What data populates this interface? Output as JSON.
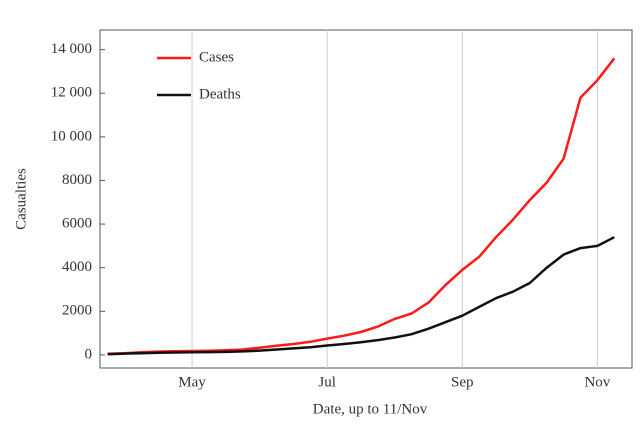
{
  "chart_data": {
    "type": "line",
    "x_label": "Date, up to 11/Nov",
    "y_label": "Casualties",
    "categories": [
      null,
      null,
      null,
      null,
      null,
      "May",
      null,
      null,
      null,
      null,
      null,
      null,
      null,
      "Jul",
      null,
      null,
      null,
      null,
      null,
      null,
      null,
      "Sep",
      null,
      null,
      null,
      null,
      null,
      null,
      null,
      "Nov",
      null
    ],
    "series": [
      {
        "name": "Cases",
        "color": "#ff1a1a",
        "values": [
          50,
          80,
          120,
          150,
          170,
          180,
          190,
          210,
          250,
          330,
          420,
          500,
          600,
          750,
          880,
          1050,
          1300,
          1650,
          1900,
          2400,
          3200,
          3900,
          4500,
          5400,
          6200,
          7100,
          7900,
          9000,
          11800,
          12600,
          13600
        ]
      },
      {
        "name": "Deaths",
        "color": "#111111",
        "values": [
          30,
          60,
          80,
          100,
          110,
          120,
          130,
          140,
          160,
          200,
          250,
          300,
          350,
          430,
          500,
          580,
          680,
          800,
          950,
          1200,
          1500,
          1800,
          2200,
          2600,
          2900,
          3300,
          4000,
          4600,
          4900,
          5000,
          5400
        ]
      }
    ],
    "ylim": [
      -600,
      14900
    ],
    "yticks": [
      0,
      2000,
      4000,
      6000,
      8000,
      {
        "value": 10000,
        "label": "10 000"
      },
      {
        "value": 12000,
        "label": "12 000"
      },
      {
        "value": 14000,
        "label": "14 000"
      }
    ],
    "grid": true,
    "legend": "top-left"
  }
}
